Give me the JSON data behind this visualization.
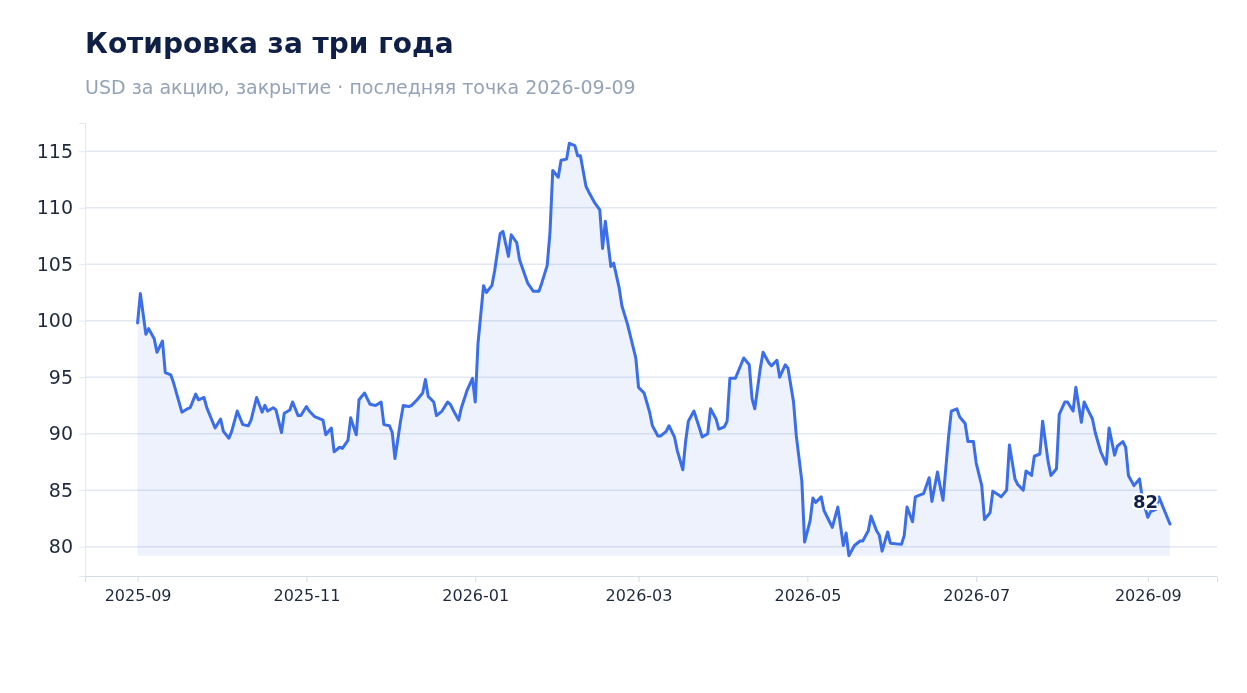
{
  "chart_data": {
    "type": "area",
    "title": "Котировка за три года",
    "subtitle": "USD за акцию, закрытие · последняя точка 2026-09-09",
    "x": [
      "2025-09-01",
      "2025-09-02",
      "2025-09-04",
      "2025-09-05",
      "2025-09-07",
      "2025-09-08",
      "2025-09-10",
      "2025-09-11",
      "2025-09-13",
      "2025-09-14",
      "2025-09-17",
      "2025-09-19",
      "2025-09-20",
      "2025-09-22",
      "2025-09-23",
      "2025-09-25",
      "2025-09-26",
      "2025-09-29",
      "2025-10-01",
      "2025-10-02",
      "2025-10-04",
      "2025-10-05",
      "2025-10-07",
      "2025-10-09",
      "2025-10-11",
      "2025-10-12",
      "2025-10-14",
      "2025-10-16",
      "2025-10-17",
      "2025-10-18",
      "2025-10-20",
      "2025-10-21",
      "2025-10-23",
      "2025-10-24",
      "2025-10-26",
      "2025-10-27",
      "2025-10-29",
      "2025-10-30",
      "2025-11-01",
      "2025-11-02",
      "2025-11-04",
      "2025-11-07",
      "2025-11-08",
      "2025-11-10",
      "2025-11-11",
      "2025-11-13",
      "2025-11-14",
      "2025-11-16",
      "2025-11-17",
      "2025-11-19",
      "2025-11-20",
      "2025-11-22",
      "2025-11-24",
      "2025-11-26",
      "2025-11-28",
      "2025-11-29",
      "2025-12-01",
      "2025-12-02",
      "2025-12-03",
      "2025-12-05",
      "2025-12-06",
      "2025-12-08",
      "2025-12-09",
      "2025-12-11",
      "2025-12-13",
      "2025-12-14",
      "2025-12-15",
      "2025-12-17",
      "2025-12-18",
      "2025-12-20",
      "2025-12-22",
      "2025-12-23",
      "2025-12-24",
      "2025-12-26",
      "2025-12-27",
      "2025-12-29",
      "2025-12-31",
      "2026-01-01",
      "2026-01-02",
      "2026-01-04",
      "2026-01-05",
      "2026-01-07",
      "2026-01-08",
      "2026-01-10",
      "2026-01-11",
      "2026-01-13",
      "2026-01-14",
      "2026-01-16",
      "2026-01-17",
      "2026-01-20",
      "2026-01-22",
      "2026-01-24",
      "2026-01-25",
      "2026-01-27",
      "2026-01-28",
      "2026-01-29",
      "2026-01-31",
      "2026-02-01",
      "2026-02-03",
      "2026-02-04",
      "2026-02-06",
      "2026-02-07",
      "2026-02-08",
      "2026-02-10",
      "2026-02-11",
      "2026-02-13",
      "2026-02-15",
      "2026-02-16",
      "2026-02-17",
      "2026-02-19",
      "2026-02-20",
      "2026-02-22",
      "2026-02-23",
      "2026-02-25",
      "2026-02-26",
      "2026-02-28",
      "2026-03-01",
      "2026-03-03",
      "2026-03-05",
      "2026-03-06",
      "2026-03-08",
      "2026-03-09",
      "2026-03-11",
      "2026-03-12",
      "2026-03-14",
      "2026-03-15",
      "2026-03-17",
      "2026-03-18",
      "2026-03-19",
      "2026-03-21",
      "2026-03-23",
      "2026-03-24",
      "2026-03-26",
      "2026-03-27",
      "2026-03-29",
      "2026-03-30",
      "2026-04-01",
      "2026-04-02",
      "2026-04-03",
      "2026-04-05",
      "2026-04-06",
      "2026-04-08",
      "2026-04-10",
      "2026-04-11",
      "2026-04-12",
      "2026-04-14",
      "2026-04-15",
      "2026-04-17",
      "2026-04-18",
      "2026-04-20",
      "2026-04-21",
      "2026-04-23",
      "2026-04-24",
      "2026-04-26",
      "2026-04-27",
      "2026-04-29",
      "2026-04-30",
      "2026-05-02",
      "2026-05-03",
      "2026-05-04",
      "2026-05-06",
      "2026-05-07",
      "2026-05-10",
      "2026-05-12",
      "2026-05-14",
      "2026-05-15",
      "2026-05-16",
      "2026-05-18",
      "2026-05-20",
      "2026-05-21",
      "2026-05-23",
      "2026-05-24",
      "2026-05-26",
      "2026-05-27",
      "2026-05-28",
      "2026-05-30",
      "2026-05-31",
      "2026-06-04",
      "2026-06-05",
      "2026-06-06",
      "2026-06-08",
      "2026-06-09",
      "2026-06-11",
      "2026-06-12",
      "2026-06-14",
      "2026-06-15",
      "2026-06-17",
      "2026-06-18",
      "2026-06-19",
      "2026-06-21",
      "2026-06-22",
      "2026-06-24",
      "2026-06-25",
      "2026-06-27",
      "2026-06-28",
      "2026-06-30",
      "2026-07-01",
      "2026-07-03",
      "2026-07-04",
      "2026-07-06",
      "2026-07-07",
      "2026-07-09",
      "2026-07-10",
      "2026-07-12",
      "2026-07-13",
      "2026-07-15",
      "2026-07-16",
      "2026-07-18",
      "2026-07-19",
      "2026-07-21",
      "2026-07-22",
      "2026-07-24",
      "2026-07-25",
      "2026-07-27",
      "2026-07-28",
      "2026-07-30",
      "2026-07-31",
      "2026-08-02",
      "2026-08-03",
      "2026-08-05",
      "2026-08-06",
      "2026-08-08",
      "2026-08-09",
      "2026-08-11",
      "2026-08-12",
      "2026-08-13",
      "2026-08-15",
      "2026-08-17",
      "2026-08-18",
      "2026-08-20",
      "2026-08-21",
      "2026-08-23",
      "2026-08-24",
      "2026-08-25",
      "2026-08-27",
      "2026-08-29",
      "2026-08-30",
      "2026-09-01",
      "2026-09-02",
      "2026-09-04",
      "2026-09-05",
      "2026-09-07",
      "2026-09-09"
    ],
    "series": [
      {
        "color": "#3b6ee8",
        "values": [
          99.8,
          102.4,
          98.8,
          99.3,
          98.4,
          97.2,
          98.2,
          95.4,
          95.2,
          94.5,
          91.9,
          92.2,
          92.3,
          93.5,
          93.0,
          93.2,
          92.3,
          90.5,
          91.3,
          90.2,
          89.6,
          90.2,
          92.0,
          90.8,
          90.7,
          91.2,
          93.2,
          91.9,
          92.5,
          92.0,
          92.3,
          92.1,
          90.1,
          91.8,
          92.1,
          92.8,
          91.6,
          91.6,
          92.4,
          92.0,
          91.5,
          91.2,
          89.9,
          90.5,
          88.4,
          88.8,
          88.7,
          89.4,
          91.4,
          89.9,
          93.0,
          93.6,
          92.6,
          92.5,
          92.8,
          90.8,
          90.7,
          90.1,
          87.8,
          91.1,
          92.5,
          92.4,
          92.5,
          93.0,
          93.6,
          94.8,
          93.3,
          92.8,
          91.6,
          92.0,
          92.8,
          92.6,
          92.1,
          91.2,
          92.3,
          93.8,
          94.9,
          92.8,
          98.0,
          103.1,
          102.5,
          103.1,
          104.4,
          107.7,
          107.9,
          105.7,
          107.6,
          106.9,
          105.4,
          103.3,
          102.6,
          102.6,
          103.3,
          104.9,
          107.8,
          113.3,
          112.7,
          114.2,
          114.3,
          115.7,
          115.5,
          114.6,
          114.6,
          111.9,
          111.4,
          110.5,
          109.8,
          106.4,
          108.8,
          104.8,
          105.1,
          102.9,
          101.3,
          99.7,
          98.7,
          96.7,
          94.1,
          93.6,
          91.9,
          90.7,
          89.8,
          89.8,
          90.2,
          90.7,
          89.7,
          88.5,
          86.8,
          89.3,
          91.1,
          92.0,
          90.5,
          89.7,
          90.0,
          92.2,
          91.3,
          90.4,
          90.6,
          91.1,
          94.9,
          94.9,
          95.5,
          96.7,
          96.1,
          93.1,
          92.2,
          95.8,
          97.2,
          96.3,
          96.0,
          96.5,
          95.0,
          96.1,
          95.8,
          92.8,
          89.8,
          85.8,
          80.4,
          82.3,
          84.3,
          83.9,
          84.4,
          83.2,
          81.7,
          83.5,
          80.1,
          81.2,
          79.2,
          80.1,
          80.5,
          80.5,
          81.4,
          82.7,
          81.4,
          81.0,
          79.6,
          81.3,
          80.3,
          80.2,
          81.0,
          83.5,
          82.2,
          84.4,
          84.6,
          84.7,
          86.1,
          84.0,
          86.6,
          85.3,
          84.1,
          89.7,
          92.0,
          92.2,
          91.5,
          90.9,
          89.3,
          89.3,
          87.4,
          85.4,
          82.4,
          83.0,
          84.9,
          84.6,
          84.4,
          85.0,
          89.0,
          86.0,
          85.5,
          85.0,
          86.7,
          86.3,
          88.0,
          88.2,
          91.1,
          87.5,
          86.3,
          86.9,
          91.7,
          92.8,
          92.8,
          92.0,
          94.1,
          91.0,
          92.8,
          91.8,
          91.3,
          90.1,
          88.4,
          87.3,
          90.5,
          88.1,
          88.9,
          89.3,
          88.8,
          86.3,
          85.4,
          86.0,
          84.3,
          82.6,
          83.1,
          83.3,
          84.4,
          83.2,
          82.0
        ]
      }
    ],
    "annotations": [
      {
        "text": "82",
        "x": "2026-09-09",
        "y": 82
      }
    ],
    "xlim": [
      "2025-08-13",
      "2026-09-26"
    ],
    "xticks": [
      "2025-09",
      "2025-11",
      "2026-01",
      "2026-03",
      "2026-05",
      "2026-07",
      "2026-09"
    ],
    "ylim": [
      77.4,
      117.5
    ],
    "yticks": [
      80,
      85,
      90,
      95,
      100,
      105,
      110,
      115
    ],
    "grid": "y",
    "line_style": "solid",
    "marker": "none"
  }
}
